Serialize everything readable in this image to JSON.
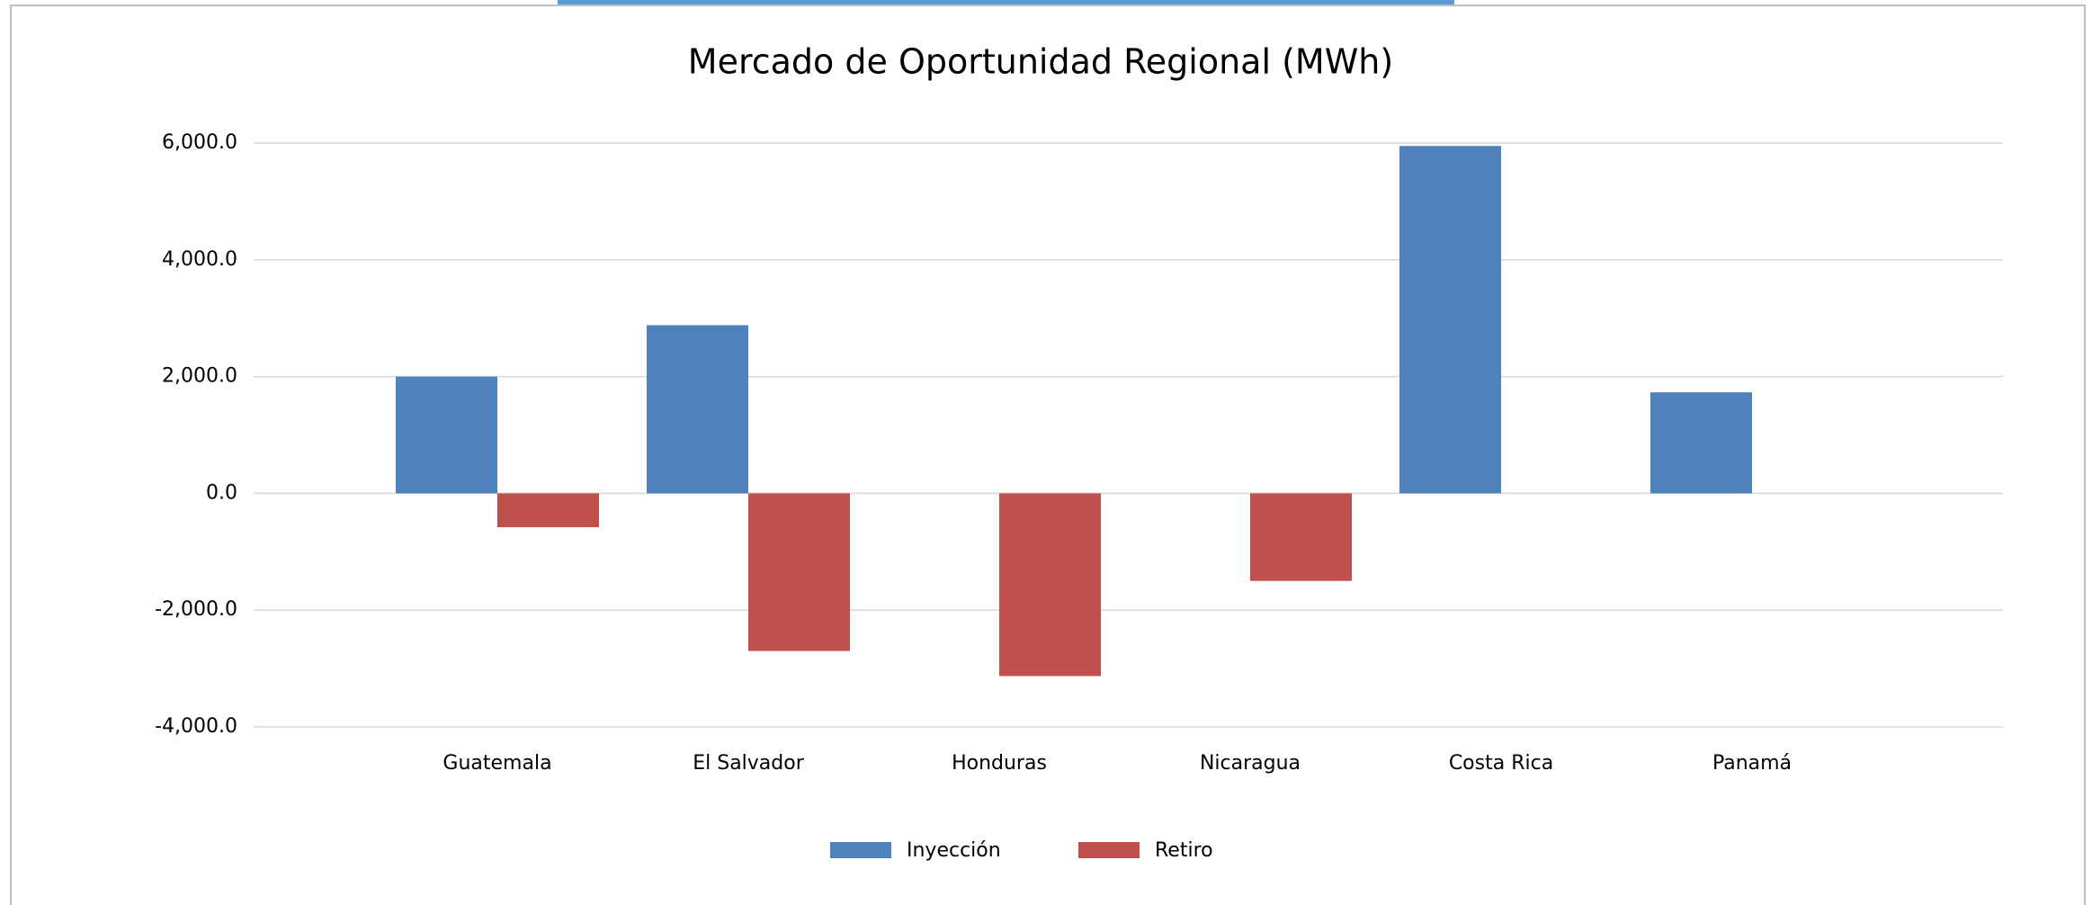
{
  "chart_data": {
    "type": "bar",
    "title": "Mercado de Oportunidad Regional (MWh)",
    "categories": [
      "Guatemala",
      "El Salvador",
      "Honduras",
      "Nicaragua",
      "Costa Rica",
      "Panamá"
    ],
    "series": [
      {
        "name": "Inyección",
        "color": "#4f81bd",
        "values": [
          2000,
          2880,
          0,
          0,
          5950,
          1730
        ]
      },
      {
        "name": "Retiro",
        "color": "#c0504d",
        "values": [
          -580,
          -2700,
          -3130,
          -1500,
          0,
          0
        ]
      }
    ],
    "ylim": [
      -4000,
      6000
    ],
    "yticks": [
      {
        "value": -4000,
        "label": "-4,000.0"
      },
      {
        "value": -2000,
        "label": "-2,000.0"
      },
      {
        "value": 0,
        "label": "0.0"
      },
      {
        "value": 2000,
        "label": "2,000.0"
      },
      {
        "value": 4000,
        "label": "4,000.0"
      },
      {
        "value": 6000,
        "label": "6,000.0"
      }
    ],
    "grid": true,
    "legend": "bottom"
  }
}
